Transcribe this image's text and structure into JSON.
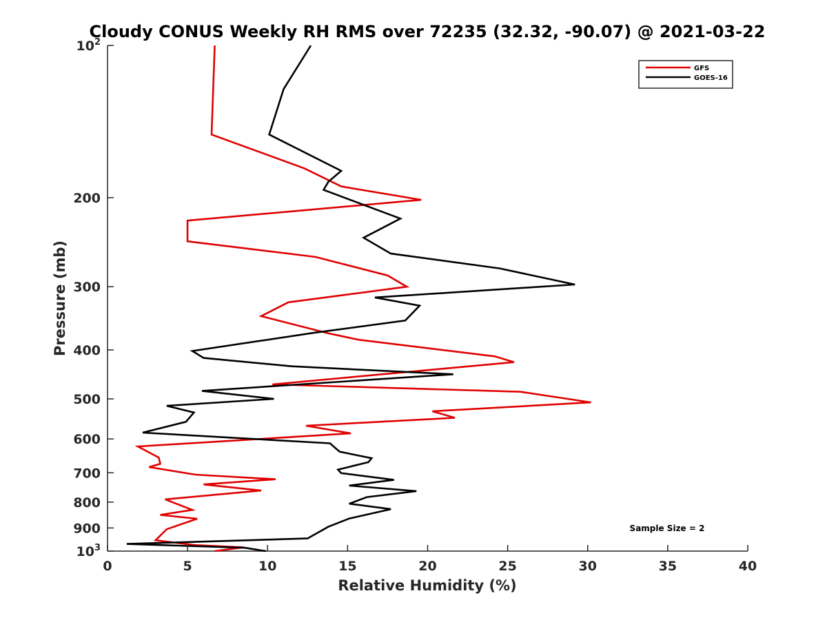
{
  "chart_data": {
    "type": "line",
    "title": "Cloudy CONUS Weekly RH RMS over 72235 (32.32, -90.07) @ 2021-03-22",
    "xlabel": "Relative Humidity (%)",
    "ylabel": "Pressure (mb)",
    "xlim": [
      0,
      40
    ],
    "ylim": [
      100,
      1000
    ],
    "yscale": "log",
    "yreversed": true,
    "xticks": [
      0,
      5,
      10,
      15,
      20,
      25,
      30,
      35,
      40
    ],
    "yticks": [
      {
        "value": 100,
        "label": "10",
        "exp": "2"
      },
      {
        "value": 200,
        "label": "200",
        "exp": ""
      },
      {
        "value": 300,
        "label": "300",
        "exp": ""
      },
      {
        "value": 400,
        "label": "400",
        "exp": ""
      },
      {
        "value": 500,
        "label": "500",
        "exp": ""
      },
      {
        "value": 600,
        "label": "600",
        "exp": ""
      },
      {
        "value": 700,
        "label": "700",
        "exp": ""
      },
      {
        "value": 800,
        "label": "800",
        "exp": ""
      },
      {
        "value": 900,
        "label": "900",
        "exp": ""
      },
      {
        "value": 1000,
        "label": "10",
        "exp": "3"
      }
    ],
    "legend_position": "top-right",
    "annotation": "Sample Size = 2",
    "series": [
      {
        "name": "GFS",
        "color": "#e00000",
        "points": [
          [
            6.7,
            100
          ],
          [
            6.5,
            150
          ],
          [
            12.3,
            175
          ],
          [
            14.6,
            190
          ],
          [
            19.6,
            202
          ],
          [
            5.0,
            222
          ],
          [
            5.0,
            244
          ],
          [
            13.0,
            262
          ],
          [
            17.5,
            285
          ],
          [
            18.7,
            300
          ],
          [
            11.3,
            322
          ],
          [
            9.6,
            343
          ],
          [
            13.8,
            371
          ],
          [
            15.7,
            382
          ],
          [
            24.2,
            412
          ],
          [
            25.4,
            423
          ],
          [
            10.3,
            468
          ],
          [
            25.8,
            484
          ],
          [
            30.2,
            508
          ],
          [
            20.3,
            529
          ],
          [
            21.7,
            545
          ],
          [
            12.4,
            565
          ],
          [
            15.2,
            585
          ],
          [
            1.9,
            621
          ],
          [
            3.2,
            653
          ],
          [
            3.3,
            672
          ],
          [
            2.6,
            682
          ],
          [
            5.5,
            706
          ],
          [
            10.5,
            721
          ],
          [
            6.0,
            738
          ],
          [
            9.6,
            759
          ],
          [
            3.6,
            790
          ],
          [
            5.3,
            829
          ],
          [
            3.3,
            848
          ],
          [
            5.6,
            863
          ],
          [
            3.7,
            905
          ],
          [
            3.0,
            952
          ],
          [
            5.5,
            973
          ],
          [
            8.5,
            983
          ],
          [
            6.7,
            1000
          ]
        ]
      },
      {
        "name": "GOES-16",
        "color": "#000000",
        "points": [
          [
            12.7,
            100
          ],
          [
            11.0,
            122
          ],
          [
            10.1,
            150
          ],
          [
            14.6,
            177
          ],
          [
            13.8,
            186
          ],
          [
            13.5,
            193
          ],
          [
            18.3,
            220
          ],
          [
            16.0,
            240
          ],
          [
            17.7,
            258
          ],
          [
            24.5,
            276
          ],
          [
            29.2,
            297
          ],
          [
            16.7,
            315
          ],
          [
            19.5,
            327
          ],
          [
            18.6,
            350
          ],
          [
            12.9,
            370
          ],
          [
            5.3,
            402
          ],
          [
            6.0,
            415
          ],
          [
            11.5,
            431
          ],
          [
            21.6,
            447
          ],
          [
            5.9,
            482
          ],
          [
            10.4,
            500
          ],
          [
            3.7,
            516
          ],
          [
            5.4,
            532
          ],
          [
            4.9,
            555
          ],
          [
            2.2,
            583
          ],
          [
            13.9,
            612
          ],
          [
            14.5,
            636
          ],
          [
            16.5,
            655
          ],
          [
            16.3,
            667
          ],
          [
            14.4,
            690
          ],
          [
            14.6,
            701
          ],
          [
            17.9,
            723
          ],
          [
            15.1,
            742
          ],
          [
            19.3,
            761
          ],
          [
            16.2,
            782
          ],
          [
            15.1,
            806
          ],
          [
            17.7,
            826
          ],
          [
            15.1,
            862
          ],
          [
            13.8,
            895
          ],
          [
            12.5,
            944
          ],
          [
            1.2,
            968
          ],
          [
            8.6,
            985
          ],
          [
            9.9,
            1000
          ]
        ]
      }
    ]
  }
}
